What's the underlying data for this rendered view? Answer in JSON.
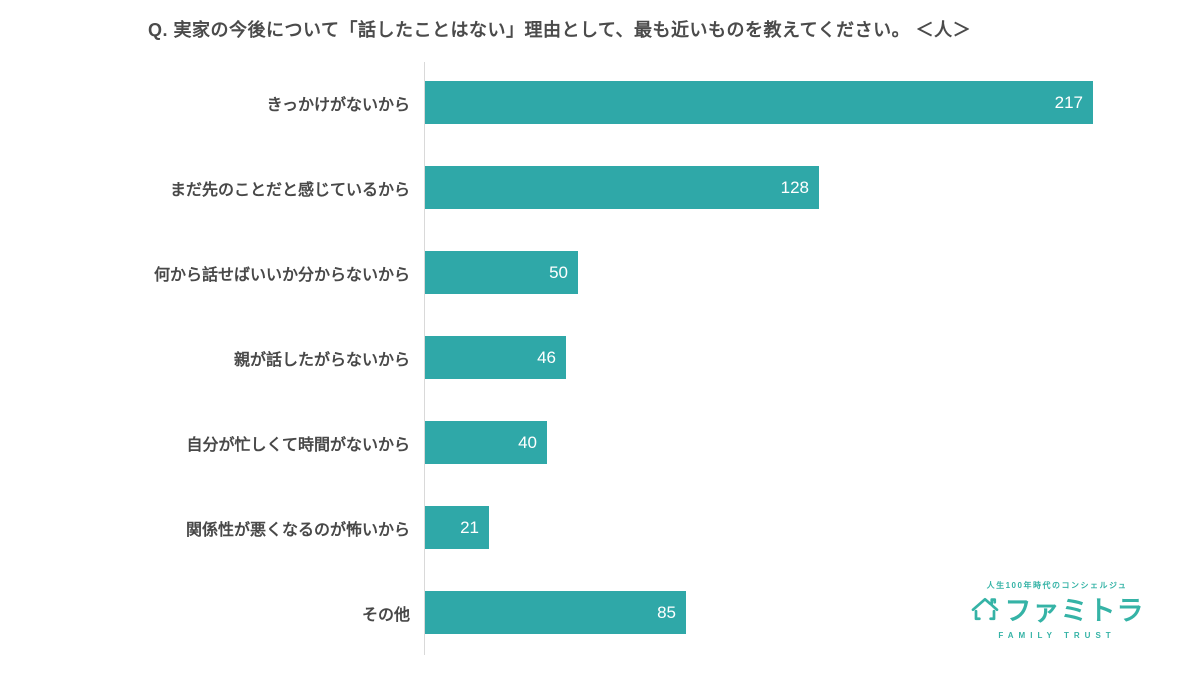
{
  "title": "Q. 実家の今後について「話したことはない」理由として、最も近いものを教えてください。 ＜人＞",
  "chart_data": {
    "type": "bar",
    "orientation": "horizontal",
    "categories": [
      "きっかけがないから",
      "まだ先のことだと感じているから",
      "何から話せばいいか分からないから",
      "親が話したがらないから",
      "自分が忙しくて時間がないから",
      "関係性が悪くなるのが怖いから",
      "その他"
    ],
    "values": [
      217,
      128,
      50,
      46,
      40,
      21,
      85
    ],
    "unit": "人",
    "value_labels_position": "inside-end",
    "xlim": [
      0,
      232
    ],
    "grid": false,
    "legend": false,
    "bar_color": "#2fa8a8",
    "value_label_color": "#ffffff",
    "axis_line_color": "#d9d9d9"
  },
  "logo": {
    "tagline": "人生100年時代のコンシェルジュ",
    "name": "ファミトラ",
    "subtitle": "FAMILY TRUST",
    "color": "#35b3a6",
    "icon": "house-icon"
  }
}
